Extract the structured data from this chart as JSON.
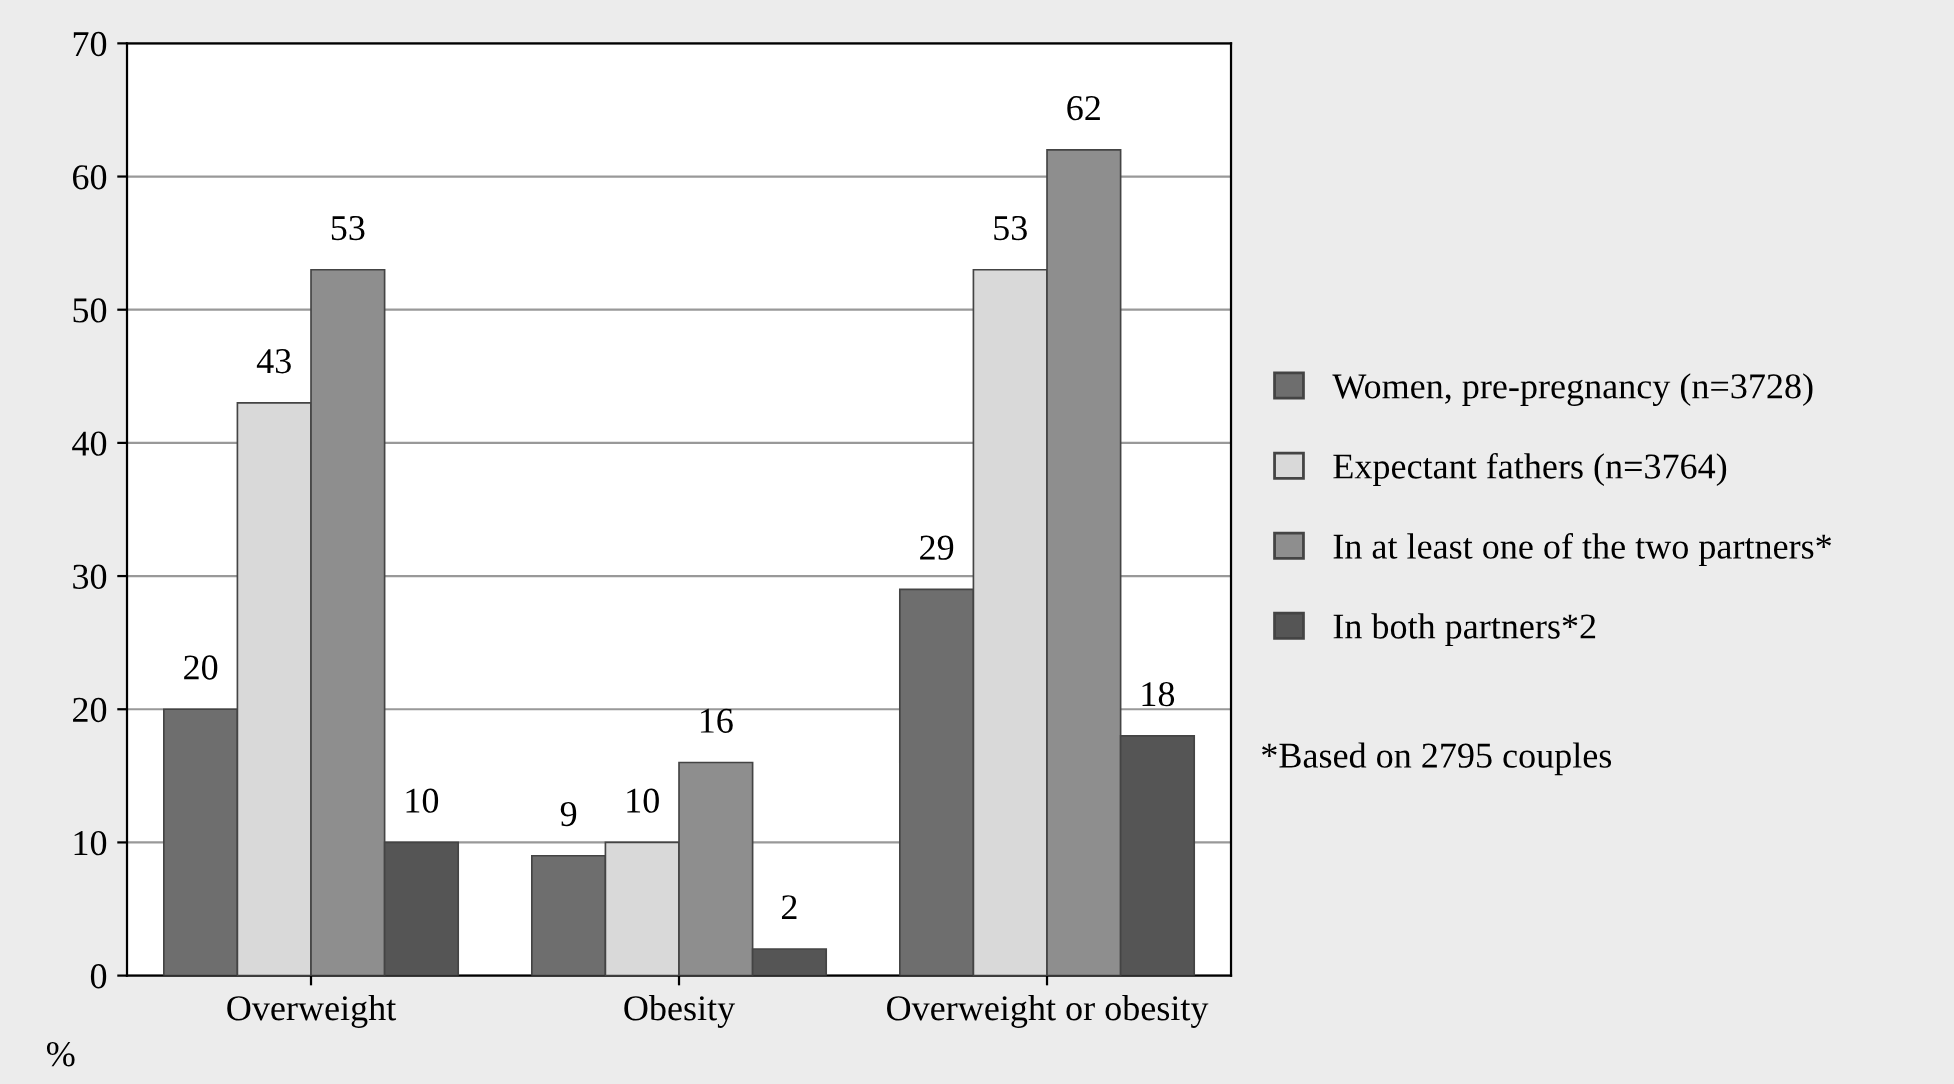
{
  "chart_data": {
    "type": "bar",
    "categories": [
      "Overweight",
      "Obesity",
      "Overweight or obesity"
    ],
    "ylabel": "%",
    "series": [
      {
        "name": "Women, pre-pregnancy (n=3728)",
        "color": "#6e6e6e",
        "values": [
          20,
          9,
          29
        ]
      },
      {
        "name": "Expectant fathers (n=3764)",
        "color": "#d9d9d9",
        "values": [
          43,
          10,
          53
        ]
      },
      {
        "name": "In at least one of the two partners*",
        "color": "#8e8e8e",
        "values": [
          53,
          16,
          62
        ]
      },
      {
        "name": "In both partners*2",
        "color": "#555555",
        "values": [
          10,
          2,
          18
        ]
      }
    ],
    "ylim": [
      0,
      70
    ],
    "yticks": [
      0,
      10,
      20,
      30,
      40,
      50,
      60,
      70
    ],
    "grid": "y",
    "legend": "right",
    "data_labels": true,
    "annotations": [
      "*Based on 2795 couples"
    ]
  }
}
